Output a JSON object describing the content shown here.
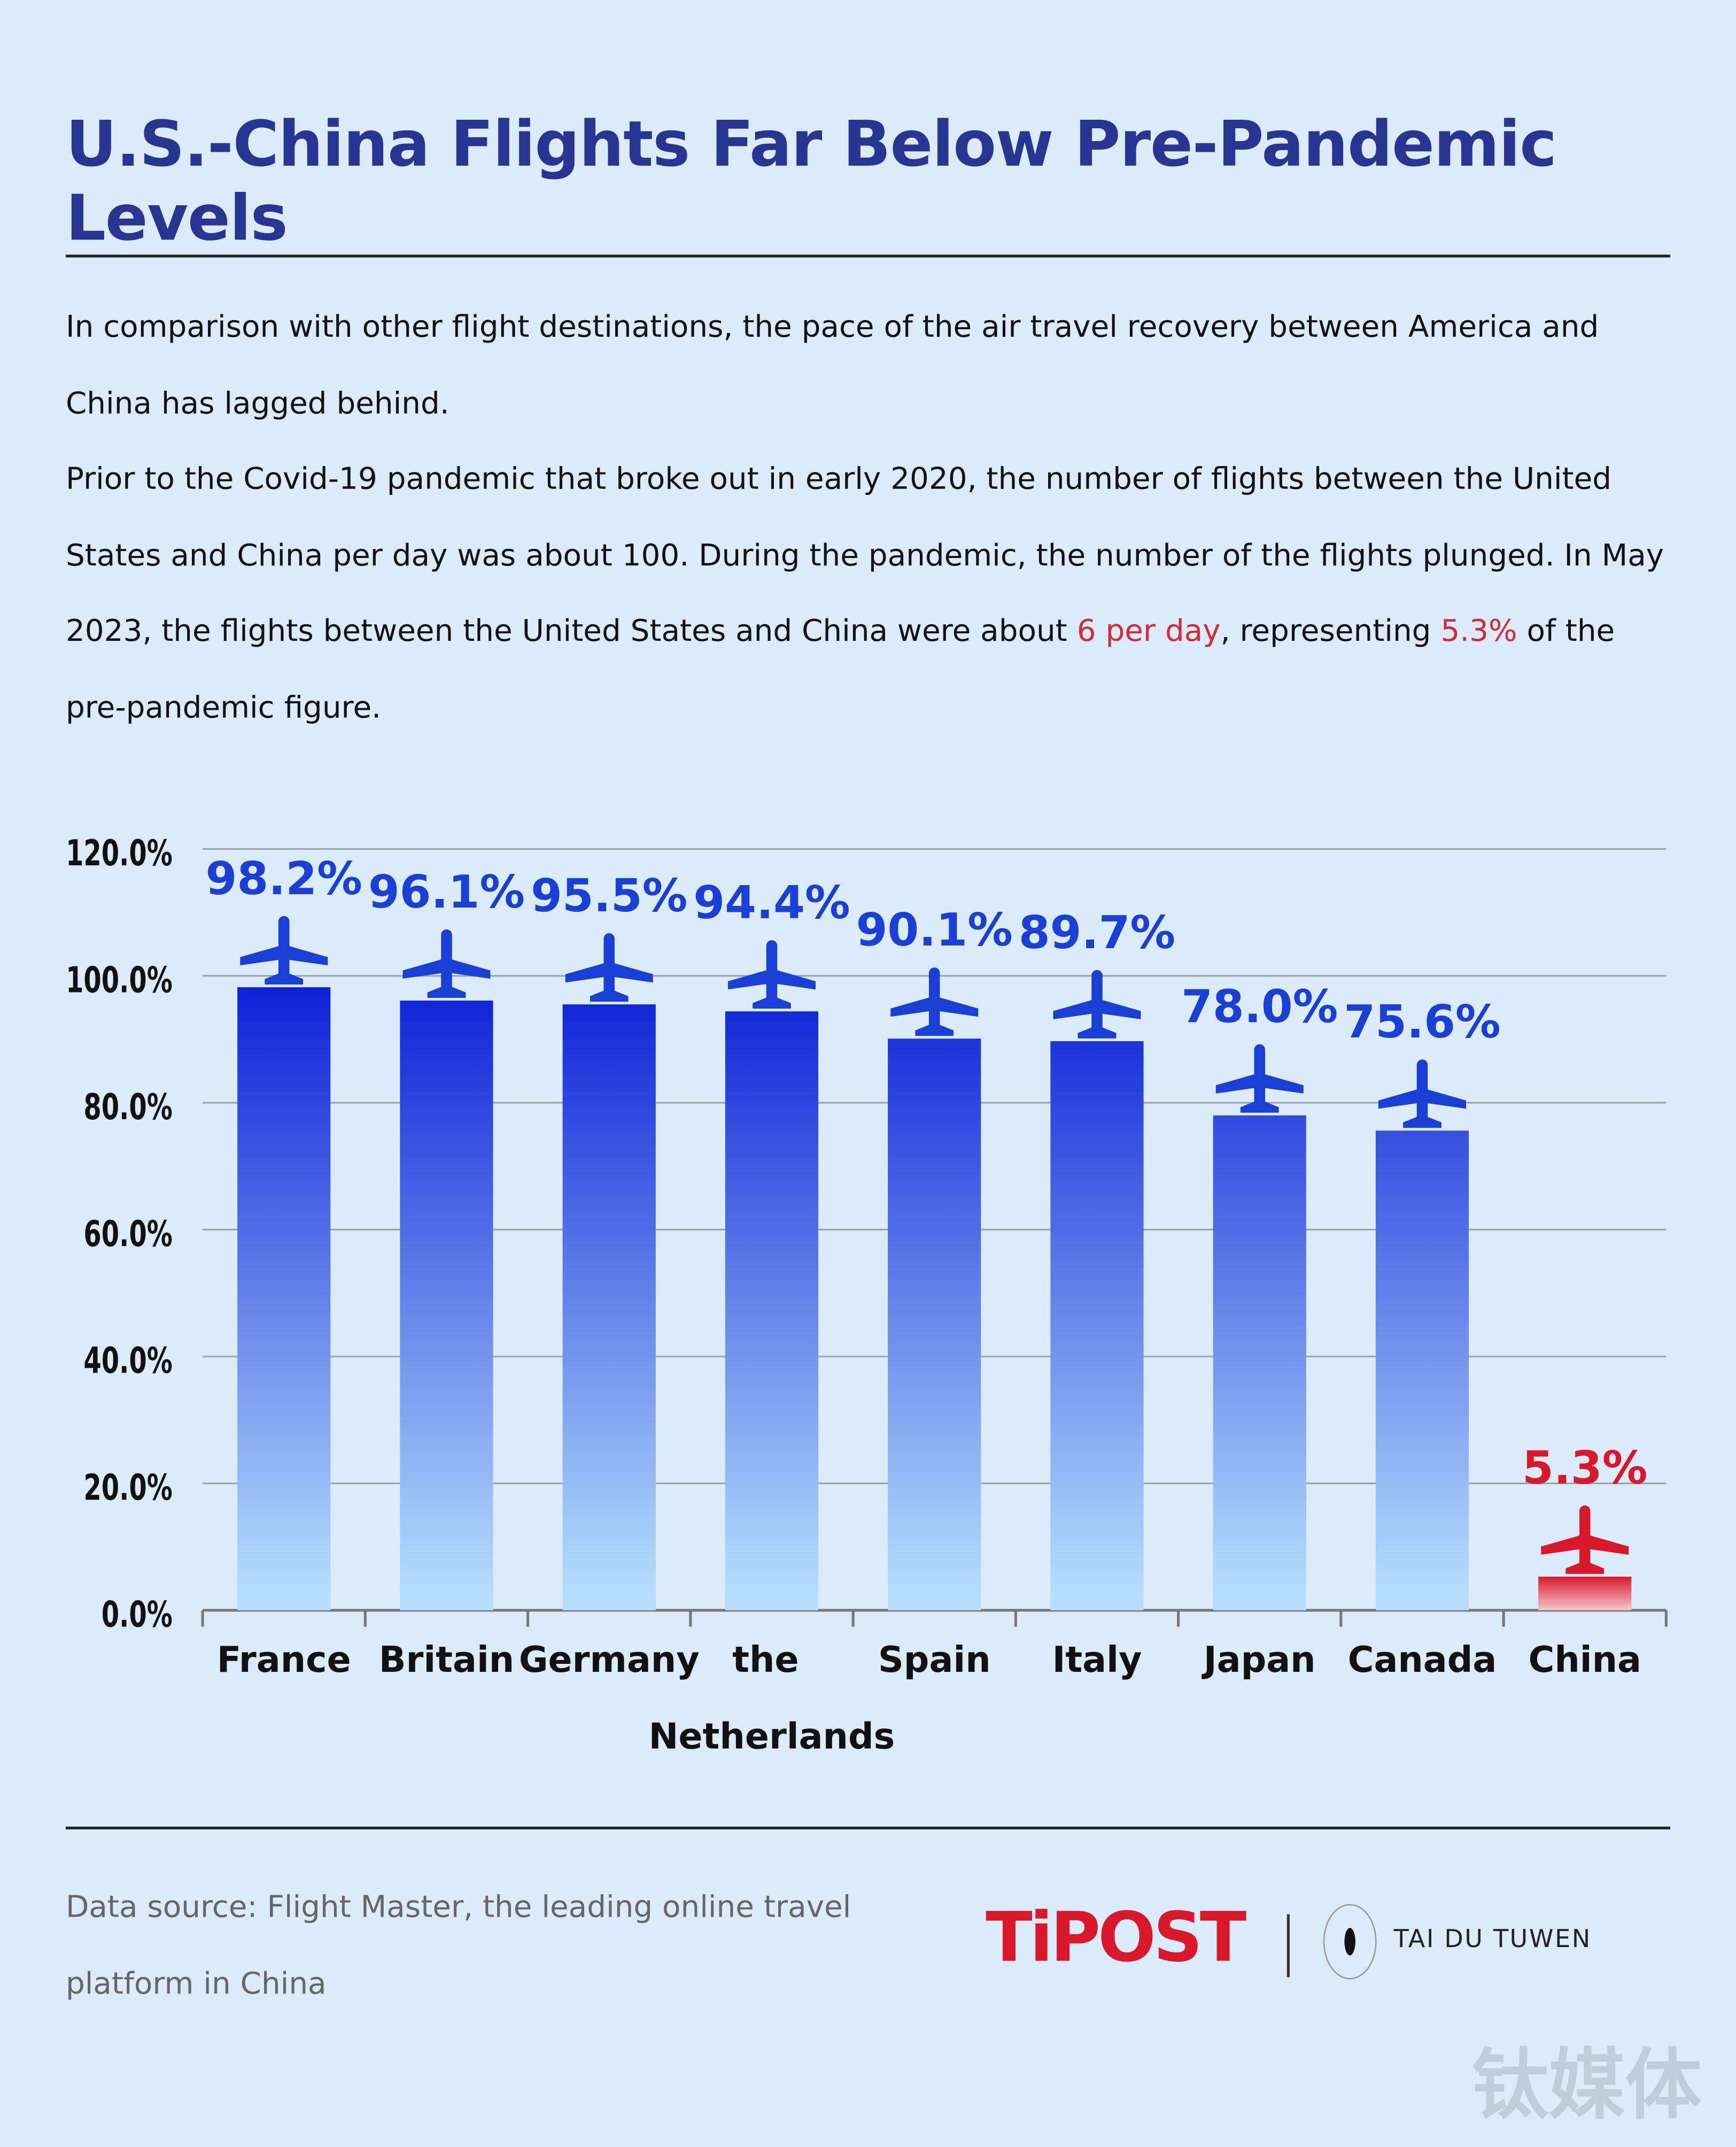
{
  "title": "U.S.-China Flights Far Below Pre-Pandemic Levels",
  "paragraphs": [
    [
      "In comparison with other flight destinations, the pace of the air travel recovery between America and China has lagged behind."
    ],
    [
      "Prior to the Covid-19 pandemic that broke out in early 2020, the number of flights between the United States and China per day was about 100. During the pandemic, the number of the flights plunged. In May 2023, the flights between the United States and China were about ",
      "6 per day",
      ", representing ",
      "5.3%",
      " of the pre-pandemic figure."
    ]
  ],
  "chart_data": {
    "type": "bar",
    "categories": [
      "France",
      "Britain",
      "Germany",
      "the Netherlands",
      "Spain",
      "Italy",
      "Japan",
      "Canada",
      "China"
    ],
    "values": [
      98.2,
      96.1,
      95.5,
      94.4,
      90.1,
      89.7,
      78.0,
      75.6,
      5.3
    ],
    "value_labels": [
      "98.2%",
      "96.1%",
      "95.5%",
      "94.4%",
      "90.1%",
      "89.7%",
      "78.0%",
      "75.6%",
      "5.3%"
    ],
    "colors": [
      "#1a3fd6",
      "#1a3fd6",
      "#1a3fd6",
      "#1a3fd6",
      "#1a3fd6",
      "#1a3fd6",
      "#1a3fd6",
      "#1a3fd6",
      "#d9182b"
    ],
    "ylim": [
      0,
      120
    ],
    "yticks": [
      {
        "value": 0,
        "label": "0.0%"
      },
      {
        "value": 20,
        "label": "20.0%"
      },
      {
        "value": 40,
        "label": "40.0%"
      },
      {
        "value": 60,
        "label": "60.0%"
      },
      {
        "value": 80,
        "label": "80.0%"
      },
      {
        "value": 100,
        "label": "100.0%"
      },
      {
        "value": 120,
        "label": "120.0%"
      }
    ],
    "grid": true
  },
  "footer": {
    "source": "Data source: Flight Master, the leading online travel platform in China",
    "logo": "TiPOST",
    "brand": "TAI DU TUWEN",
    "watermark": "钛媒体"
  }
}
